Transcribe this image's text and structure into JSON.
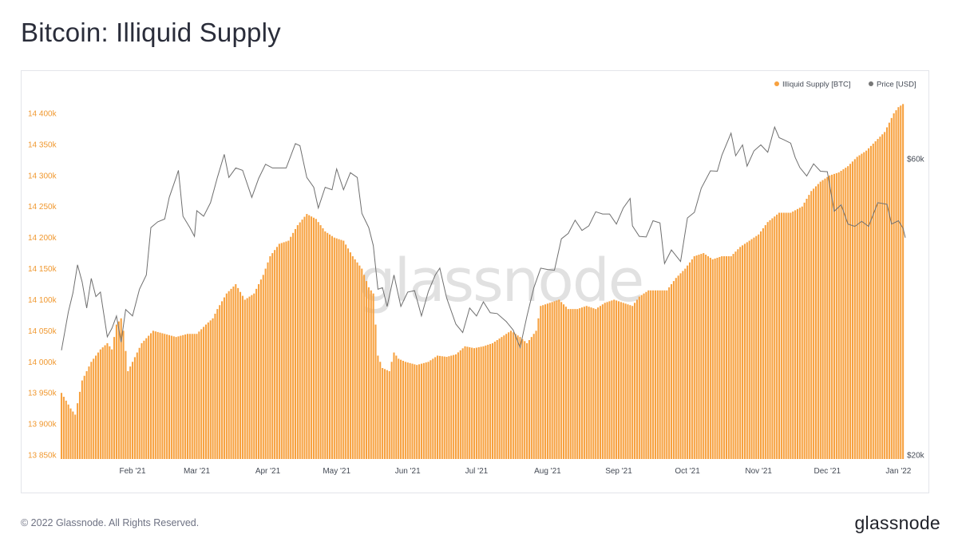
{
  "page": {
    "title": "Bitcoin: Illiquid Supply",
    "footer": "© 2022 Glassnode. All Rights Reserved.",
    "brand": "glassnode",
    "watermark": "glassnode"
  },
  "chart_data": {
    "type": "bar",
    "title": "Bitcoin: Illiquid Supply",
    "legend_position": "top-right",
    "legend": [
      {
        "label": "Illiquid Supply [BTC]",
        "color": "#f7a13f"
      },
      {
        "label": "Price [USD]",
        "color": "#777777"
      }
    ],
    "x_ticks": [
      {
        "date": "2021-02-01",
        "label": "Feb '21"
      },
      {
        "date": "2021-03-01",
        "label": "Mar '21"
      },
      {
        "date": "2021-04-01",
        "label": "Apr '21"
      },
      {
        "date": "2021-05-01",
        "label": "May '21"
      },
      {
        "date": "2021-06-01",
        "label": "Jun '21"
      },
      {
        "date": "2021-07-01",
        "label": "Jul '21"
      },
      {
        "date": "2021-08-01",
        "label": "Aug '21"
      },
      {
        "date": "2021-09-01",
        "label": "Sep '21"
      },
      {
        "date": "2021-10-01",
        "label": "Oct '21"
      },
      {
        "date": "2021-11-01",
        "label": "Nov '21"
      },
      {
        "date": "2021-12-01",
        "label": "Dec '21"
      },
      {
        "date": "2022-01-01",
        "label": "Jan '22"
      }
    ],
    "x_range": [
      "2021-01-01",
      "2022-01-04"
    ],
    "y_left": {
      "ticks": [
        13850000,
        13900000,
        13950000,
        14000000,
        14050000,
        14100000,
        14150000,
        14200000,
        14250000,
        14300000,
        14350000,
        14400000
      ],
      "tick_labels": [
        "13 850k",
        "13 900k",
        "13 950k",
        "14 000k",
        "14 050k",
        "14 100k",
        "14 150k",
        "14 200k",
        "14 250k",
        "14 300k",
        "14 350k",
        "14 400k"
      ],
      "range": [
        13850000,
        14400000
      ]
    },
    "y_right": {
      "scale": "log",
      "ticks": [
        20000,
        60000
      ],
      "tick_labels": [
        "$20k",
        "$60k"
      ]
    },
    "series": [
      {
        "name": "Illiquid Supply [BTC]",
        "kind": "bar",
        "color": "#f7a13f",
        "points": [
          [
            "2021-01-01",
            13950000
          ],
          [
            "2021-01-05",
            13925000
          ],
          [
            "2021-01-07",
            13915000
          ],
          [
            "2021-01-10",
            13970000
          ],
          [
            "2021-01-14",
            14000000
          ],
          [
            "2021-01-18",
            14020000
          ],
          [
            "2021-01-21",
            14030000
          ],
          [
            "2021-01-23",
            14020000
          ],
          [
            "2021-01-25",
            14060000
          ],
          [
            "2021-01-27",
            14070000
          ],
          [
            "2021-01-28",
            14050000
          ],
          [
            "2021-01-30",
            13985000
          ],
          [
            "2021-02-01",
            14000000
          ],
          [
            "2021-02-05",
            14030000
          ],
          [
            "2021-02-10",
            14050000
          ],
          [
            "2021-02-15",
            14045000
          ],
          [
            "2021-02-20",
            14040000
          ],
          [
            "2021-02-25",
            14045000
          ],
          [
            "2021-03-01",
            14045000
          ],
          [
            "2021-03-05",
            14060000
          ],
          [
            "2021-03-08",
            14070000
          ],
          [
            "2021-03-10",
            14085000
          ],
          [
            "2021-03-14",
            14110000
          ],
          [
            "2021-03-18",
            14125000
          ],
          [
            "2021-03-22",
            14100000
          ],
          [
            "2021-03-26",
            14110000
          ],
          [
            "2021-03-30",
            14140000
          ],
          [
            "2021-04-02",
            14170000
          ],
          [
            "2021-04-06",
            14190000
          ],
          [
            "2021-04-10",
            14195000
          ],
          [
            "2021-04-14",
            14220000
          ],
          [
            "2021-04-18",
            14238000
          ],
          [
            "2021-04-22",
            14230000
          ],
          [
            "2021-04-26",
            14210000
          ],
          [
            "2021-04-30",
            14200000
          ],
          [
            "2021-05-04",
            14195000
          ],
          [
            "2021-05-08",
            14170000
          ],
          [
            "2021-05-12",
            14150000
          ],
          [
            "2021-05-15",
            14120000
          ],
          [
            "2021-05-17",
            14110000
          ],
          [
            "2021-05-19",
            14010000
          ],
          [
            "2021-05-21",
            13990000
          ],
          [
            "2021-05-24",
            13985000
          ],
          [
            "2021-05-26",
            14015000
          ],
          [
            "2021-05-28",
            14005000
          ],
          [
            "2021-05-31",
            14000000
          ],
          [
            "2021-06-05",
            13995000
          ],
          [
            "2021-06-10",
            14000000
          ],
          [
            "2021-06-14",
            14010000
          ],
          [
            "2021-06-18",
            14008000
          ],
          [
            "2021-06-22",
            14012000
          ],
          [
            "2021-06-26",
            14025000
          ],
          [
            "2021-06-30",
            14022000
          ],
          [
            "2021-07-04",
            14025000
          ],
          [
            "2021-07-08",
            14030000
          ],
          [
            "2021-07-12",
            14040000
          ],
          [
            "2021-07-16",
            14050000
          ],
          [
            "2021-07-20",
            14040000
          ],
          [
            "2021-07-23",
            14030000
          ],
          [
            "2021-07-27",
            14050000
          ],
          [
            "2021-07-29",
            14090000
          ],
          [
            "2021-08-02",
            14095000
          ],
          [
            "2021-08-06",
            14100000
          ],
          [
            "2021-08-10",
            14085000
          ],
          [
            "2021-08-14",
            14085000
          ],
          [
            "2021-08-18",
            14090000
          ],
          [
            "2021-08-22",
            14085000
          ],
          [
            "2021-08-26",
            14095000
          ],
          [
            "2021-08-30",
            14100000
          ],
          [
            "2021-09-03",
            14095000
          ],
          [
            "2021-09-07",
            14090000
          ],
          [
            "2021-09-10",
            14105000
          ],
          [
            "2021-09-14",
            14115000
          ],
          [
            "2021-09-18",
            14115000
          ],
          [
            "2021-09-22",
            14115000
          ],
          [
            "2021-09-26",
            14135000
          ],
          [
            "2021-09-30",
            14150000
          ],
          [
            "2021-10-04",
            14170000
          ],
          [
            "2021-10-08",
            14175000
          ],
          [
            "2021-10-12",
            14165000
          ],
          [
            "2021-10-16",
            14170000
          ],
          [
            "2021-10-20",
            14170000
          ],
          [
            "2021-10-24",
            14185000
          ],
          [
            "2021-10-28",
            14195000
          ],
          [
            "2021-11-01",
            14205000
          ],
          [
            "2021-11-05",
            14225000
          ],
          [
            "2021-11-10",
            14240000
          ],
          [
            "2021-11-15",
            14240000
          ],
          [
            "2021-11-20",
            14250000
          ],
          [
            "2021-11-24",
            14275000
          ],
          [
            "2021-11-28",
            14290000
          ],
          [
            "2021-12-02",
            14300000
          ],
          [
            "2021-12-06",
            14305000
          ],
          [
            "2021-12-10",
            14315000
          ],
          [
            "2021-12-14",
            14330000
          ],
          [
            "2021-12-18",
            14340000
          ],
          [
            "2021-12-22",
            14355000
          ],
          [
            "2021-12-26",
            14370000
          ],
          [
            "2021-12-30",
            14400000
          ],
          [
            "2022-01-01",
            14410000
          ],
          [
            "2022-01-03",
            14415000
          ]
        ]
      },
      {
        "name": "Price [USD]",
        "kind": "line",
        "color": "#777777",
        "points": [
          [
            "2021-01-01",
            29500
          ],
          [
            "2021-01-04",
            34000
          ],
          [
            "2021-01-06",
            36500
          ],
          [
            "2021-01-08",
            40500
          ],
          [
            "2021-01-10",
            38000
          ],
          [
            "2021-01-12",
            34500
          ],
          [
            "2021-01-14",
            38500
          ],
          [
            "2021-01-16",
            36000
          ],
          [
            "2021-01-18",
            36600
          ],
          [
            "2021-01-21",
            31000
          ],
          [
            "2021-01-23",
            32000
          ],
          [
            "2021-01-25",
            33500
          ],
          [
            "2021-01-27",
            30400
          ],
          [
            "2021-01-29",
            34300
          ],
          [
            "2021-02-01",
            33500
          ],
          [
            "2021-02-04",
            37000
          ],
          [
            "2021-02-07",
            39000
          ],
          [
            "2021-02-09",
            46500
          ],
          [
            "2021-02-12",
            47500
          ],
          [
            "2021-02-15",
            48000
          ],
          [
            "2021-02-17",
            52000
          ],
          [
            "2021-02-20",
            56000
          ],
          [
            "2021-02-21",
            57500
          ],
          [
            "2021-02-23",
            48500
          ],
          [
            "2021-02-26",
            46500
          ],
          [
            "2021-02-28",
            45000
          ],
          [
            "2021-03-01",
            49500
          ],
          [
            "2021-03-04",
            48500
          ],
          [
            "2021-03-07",
            51000
          ],
          [
            "2021-03-10",
            56000
          ],
          [
            "2021-03-13",
            61000
          ],
          [
            "2021-03-15",
            56000
          ],
          [
            "2021-03-18",
            58000
          ],
          [
            "2021-03-21",
            57500
          ],
          [
            "2021-03-25",
            52000
          ],
          [
            "2021-03-28",
            55800
          ],
          [
            "2021-03-31",
            58800
          ],
          [
            "2021-04-03",
            58000
          ],
          [
            "2021-04-06",
            58000
          ],
          [
            "2021-04-09",
            58000
          ],
          [
            "2021-04-13",
            63500
          ],
          [
            "2021-04-15",
            63000
          ],
          [
            "2021-04-18",
            56000
          ],
          [
            "2021-04-21",
            54000
          ],
          [
            "2021-04-23",
            50000
          ],
          [
            "2021-04-26",
            54000
          ],
          [
            "2021-04-29",
            53500
          ],
          [
            "2021-05-01",
            57800
          ],
          [
            "2021-05-04",
            53500
          ],
          [
            "2021-05-07",
            57000
          ],
          [
            "2021-05-10",
            56000
          ],
          [
            "2021-05-12",
            49000
          ],
          [
            "2021-05-15",
            46500
          ],
          [
            "2021-05-17",
            43500
          ],
          [
            "2021-05-19",
            37000
          ],
          [
            "2021-05-21",
            37200
          ],
          [
            "2021-05-23",
            34700
          ],
          [
            "2021-05-26",
            39000
          ],
          [
            "2021-05-29",
            34700
          ],
          [
            "2021-06-01",
            36600
          ],
          [
            "2021-06-04",
            36800
          ],
          [
            "2021-06-07",
            33500
          ],
          [
            "2021-06-10",
            36700
          ],
          [
            "2021-06-13",
            39000
          ],
          [
            "2021-06-15",
            40000
          ],
          [
            "2021-06-18",
            35800
          ],
          [
            "2021-06-22",
            32500
          ],
          [
            "2021-06-25",
            31500
          ],
          [
            "2021-06-28",
            34500
          ],
          [
            "2021-07-01",
            33500
          ],
          [
            "2021-07-04",
            35300
          ],
          [
            "2021-07-07",
            33900
          ],
          [
            "2021-07-10",
            33800
          ],
          [
            "2021-07-14",
            32800
          ],
          [
            "2021-07-17",
            31800
          ],
          [
            "2021-07-20",
            29800
          ],
          [
            "2021-07-23",
            33500
          ],
          [
            "2021-07-26",
            37200
          ],
          [
            "2021-07-29",
            40000
          ],
          [
            "2021-08-01",
            39800
          ],
          [
            "2021-08-04",
            39700
          ],
          [
            "2021-08-07",
            44600
          ],
          [
            "2021-08-10",
            45500
          ],
          [
            "2021-08-13",
            47800
          ],
          [
            "2021-08-16",
            46000
          ],
          [
            "2021-08-19",
            46800
          ],
          [
            "2021-08-22",
            49300
          ],
          [
            "2021-08-25",
            48900
          ],
          [
            "2021-08-28",
            48900
          ],
          [
            "2021-08-31",
            47100
          ],
          [
            "2021-09-03",
            50000
          ],
          [
            "2021-09-06",
            51800
          ],
          [
            "2021-09-07",
            46800
          ],
          [
            "2021-09-10",
            45000
          ],
          [
            "2021-09-13",
            44900
          ],
          [
            "2021-09-16",
            47700
          ],
          [
            "2021-09-19",
            47300
          ],
          [
            "2021-09-21",
            40700
          ],
          [
            "2021-09-24",
            42800
          ],
          [
            "2021-09-28",
            41000
          ],
          [
            "2021-10-01",
            48200
          ],
          [
            "2021-10-04",
            49200
          ],
          [
            "2021-10-07",
            53800
          ],
          [
            "2021-10-11",
            57400
          ],
          [
            "2021-10-14",
            57300
          ],
          [
            "2021-10-16",
            60800
          ],
          [
            "2021-10-20",
            66000
          ],
          [
            "2021-10-22",
            60700
          ],
          [
            "2021-10-25",
            63200
          ],
          [
            "2021-10-27",
            58400
          ],
          [
            "2021-10-30",
            61800
          ],
          [
            "2021-11-02",
            63200
          ],
          [
            "2021-11-05",
            61500
          ],
          [
            "2021-11-08",
            67500
          ],
          [
            "2021-11-10",
            64900
          ],
          [
            "2021-11-12",
            64400
          ],
          [
            "2021-11-15",
            63600
          ],
          [
            "2021-11-17",
            60300
          ],
          [
            "2021-11-19",
            58100
          ],
          [
            "2021-11-22",
            56300
          ],
          [
            "2021-11-25",
            58900
          ],
          [
            "2021-11-28",
            57300
          ],
          [
            "2021-12-01",
            57200
          ],
          [
            "2021-12-04",
            49400
          ],
          [
            "2021-12-07",
            50600
          ],
          [
            "2021-12-10",
            47100
          ],
          [
            "2021-12-13",
            46700
          ],
          [
            "2021-12-16",
            47600
          ],
          [
            "2021-12-19",
            46700
          ],
          [
            "2021-12-23",
            51000
          ],
          [
            "2021-12-27",
            50700
          ],
          [
            "2021-12-29",
            47100
          ],
          [
            "2022-01-01",
            47700
          ],
          [
            "2022-01-03",
            46400
          ],
          [
            "2022-01-04",
            44800
          ]
        ]
      }
    ]
  }
}
